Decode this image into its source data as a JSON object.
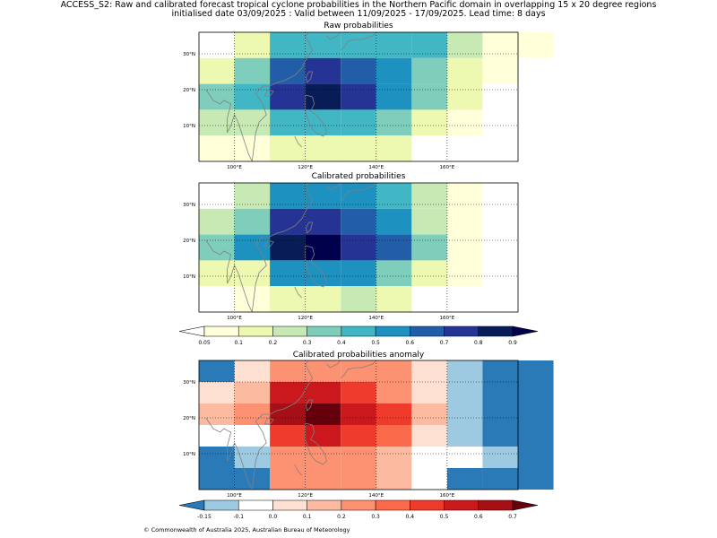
{
  "figure": {
    "title_line1": "ACCESS_S2: Raw and calibrated forecast tropical cyclone probabilities in the Northern Pacific domain in overlapping 15 x 20 degree regions",
    "title_line2": "initialised date 03/09/2025 :  Valid between 11/09/2025 - 17/09/2025. Lead time: 8 days",
    "footer": "© Commonwealth of Australia 2025, Australian Bureau of Meteorology"
  },
  "colors": {
    "prob_palette": [
      "#ffffff",
      "#ffffd9",
      "#edf8b1",
      "#c7e9b4",
      "#7fcdbb",
      "#41b6c4",
      "#1d91c0",
      "#225ea8",
      "#253494",
      "#081d58",
      "#00004d"
    ],
    "anom_palette": [
      "#2a7ab8",
      "#9ecae1",
      "#ffffff",
      "#fee0d2",
      "#fcbba1",
      "#fc9272",
      "#fb6a4a",
      "#ef3b2c",
      "#cb181d",
      "#a50f15",
      "#67000d"
    ],
    "coastline": "#808080",
    "grid": "#000000"
  },
  "chart_data": [
    {
      "type": "heatmap",
      "title": "Raw probabilities",
      "x_ticks": [
        "100°E",
        "120°E",
        "140°E",
        "160°E"
      ],
      "y_ticks": [
        "10°N",
        "20°N",
        "30°N"
      ],
      "x_range": [
        90,
        180
      ],
      "y_range": [
        0,
        36
      ],
      "grid": "dotted at tick positions",
      "cell_width_deg": 10,
      "cell_height_deg": 6,
      "rows": [
        [
          0,
          2,
          5,
          5,
          5,
          5,
          5,
          3,
          1,
          1
        ],
        [
          2,
          4,
          7,
          8,
          7,
          6,
          4,
          2,
          1,
          0
        ],
        [
          4,
          5,
          8,
          9,
          8,
          6,
          4,
          2,
          0,
          0
        ],
        [
          3,
          3,
          5,
          5,
          5,
          4,
          2,
          1,
          0,
          0
        ],
        [
          1,
          1,
          2,
          2,
          2,
          2,
          0,
          0,
          0,
          0
        ]
      ]
    },
    {
      "type": "heatmap",
      "title": "Calibrated probabilities",
      "x_ticks": [
        "100°E",
        "120°E",
        "140°E",
        "160°E"
      ],
      "y_ticks": [
        "10°N",
        "20°N",
        "30°N"
      ],
      "x_range": [
        90,
        180
      ],
      "y_range": [
        0,
        36
      ],
      "grid": "dotted at tick positions",
      "cell_width_deg": 10,
      "cell_height_deg": 6,
      "rows": [
        [
          0,
          3,
          6,
          6,
          6,
          5,
          3,
          1,
          0,
          0
        ],
        [
          3,
          4,
          8,
          8,
          7,
          6,
          3,
          1,
          0,
          0
        ],
        [
          4,
          6,
          9,
          10,
          8,
          7,
          4,
          1,
          0,
          0
        ],
        [
          2,
          2,
          6,
          6,
          6,
          4,
          2,
          1,
          0,
          0
        ],
        [
          0,
          1,
          2,
          2,
          3,
          2,
          0,
          0,
          0,
          0
        ]
      ]
    },
    {
      "type": "heatmap",
      "title": "Calibrated probabilities anomaly",
      "x_ticks": [
        "100°E",
        "120°E",
        "140°E",
        "160°E"
      ],
      "y_ticks": [
        "10°N",
        "20°N",
        "30°N"
      ],
      "x_range": [
        90,
        180
      ],
      "y_range": [
        0,
        36
      ],
      "grid": "dotted at tick positions",
      "cell_width_deg": 10,
      "cell_height_deg": 6,
      "rows": [
        [
          0,
          3,
          5,
          5,
          5,
          5,
          3,
          1,
          0,
          0
        ],
        [
          3,
          4,
          8,
          8,
          7,
          5,
          3,
          1,
          0,
          0
        ],
        [
          4,
          5,
          9,
          10,
          8,
          7,
          4,
          1,
          0,
          0
        ],
        [
          2,
          2,
          7,
          8,
          7,
          6,
          3,
          1,
          0,
          0
        ],
        [
          0,
          1,
          5,
          5,
          5,
          4,
          2,
          2,
          1,
          0
        ],
        [
          0,
          0,
          5,
          5,
          5,
          4,
          2,
          0,
          0,
          0
        ]
      ]
    }
  ],
  "colorbars": [
    {
      "name": "probability",
      "ticks": [
        "0.05",
        "0.1",
        "0.2",
        "0.3",
        "0.4",
        "0.5",
        "0.6",
        "0.7",
        "0.8",
        "0.9"
      ]
    },
    {
      "name": "anomaly",
      "ticks": [
        "-0.15",
        "-0.1",
        "0.0",
        "0.1",
        "0.2",
        "0.3",
        "0.4",
        "0.5",
        "0.6",
        "0.7"
      ]
    }
  ]
}
